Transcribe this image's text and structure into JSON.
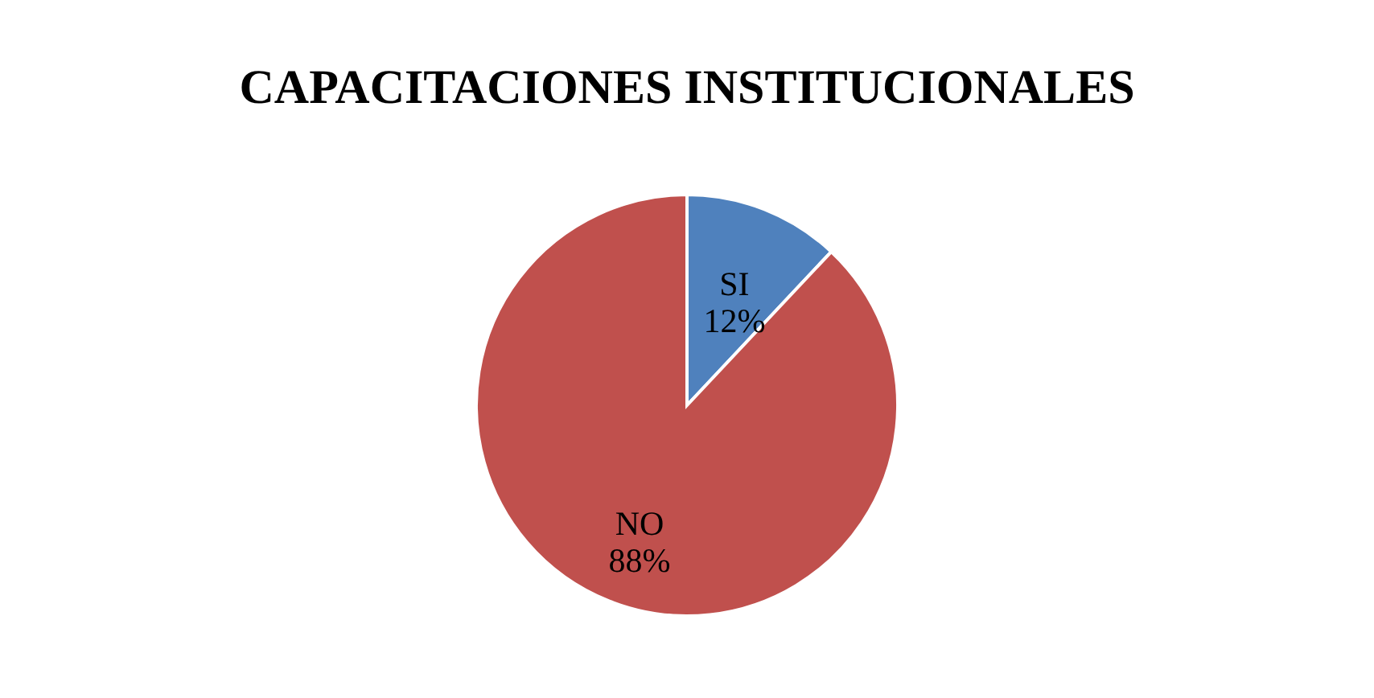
{
  "chart_data": {
    "type": "pie",
    "title": "CAPACITACIONES INSTITUCIONALES",
    "categories": [
      "SI",
      "NO"
    ],
    "values": [
      12,
      88
    ],
    "colors": [
      "#4f81bd",
      "#c0504d"
    ],
    "value_labels": [
      "12%",
      "88%"
    ],
    "data_labels": true,
    "legend": false
  }
}
